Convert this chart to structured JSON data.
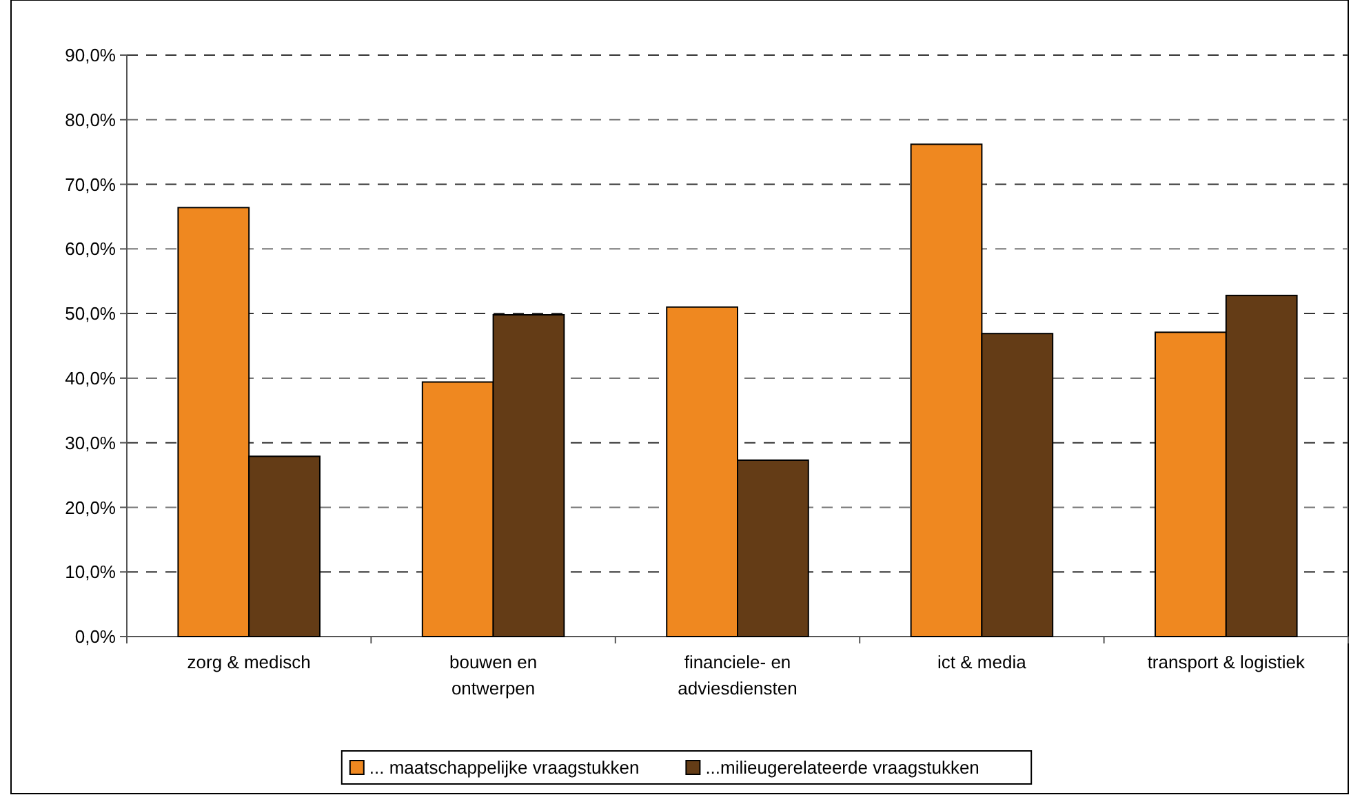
{
  "chart_data": {
    "type": "bar",
    "categories": [
      "zorg & medisch",
      "bouwen en\nontwerpen",
      "financiele- en\nadviesdiensten",
      "ict & media",
      "transport & logistiek"
    ],
    "series": [
      {
        "name": "... maatschappelijke vraagstukken",
        "color": "#ef8820",
        "values": [
          66.4,
          39.4,
          51.0,
          76.2,
          47.1
        ]
      },
      {
        "name": "...milieugerelateerde vraagstukken",
        "color": "#643c16",
        "values": [
          27.9,
          49.8,
          27.3,
          46.9,
          52.8
        ]
      }
    ],
    "ylim": [
      0,
      90
    ],
    "yticks": [
      {
        "value": 0,
        "label": "0,0%"
      },
      {
        "value": 10,
        "label": "10,0%"
      },
      {
        "value": 20,
        "label": "20,0%"
      },
      {
        "value": 30,
        "label": "30,0%"
      },
      {
        "value": 40,
        "label": "40,0%"
      },
      {
        "value": 50,
        "label": "50,0%"
      },
      {
        "value": 60,
        "label": "60,0%"
      },
      {
        "value": 70,
        "label": "70,0%"
      },
      {
        "value": 80,
        "label": "80,0%"
      },
      {
        "value": 90,
        "label": "90,0%"
      }
    ],
    "grid": "y",
    "legend": "bottom"
  }
}
